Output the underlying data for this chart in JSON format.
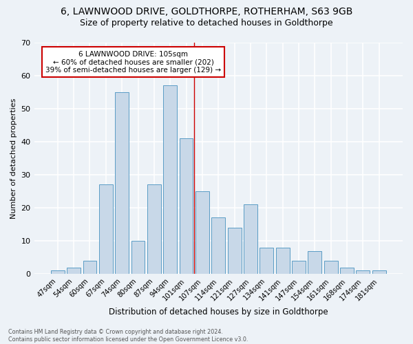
{
  "title": "6, LAWNWOOD DRIVE, GOLDTHORPE, ROTHERHAM, S63 9GB",
  "subtitle": "Size of property relative to detached houses in Goldthorpe",
  "xlabel": "Distribution of detached houses by size in Goldthorpe",
  "ylabel": "Number of detached properties",
  "categories": [
    "47sqm",
    "54sqm",
    "60sqm",
    "67sqm",
    "74sqm",
    "80sqm",
    "87sqm",
    "94sqm",
    "101sqm",
    "107sqm",
    "114sqm",
    "121sqm",
    "127sqm",
    "134sqm",
    "141sqm",
    "147sqm",
    "154sqm",
    "161sqm",
    "168sqm",
    "174sqm",
    "181sqm"
  ],
  "values": [
    1,
    2,
    4,
    27,
    55,
    10,
    27,
    57,
    41,
    25,
    17,
    14,
    21,
    8,
    8,
    4,
    7,
    4,
    2,
    1,
    1
  ],
  "bar_color": "#c8d8e8",
  "bar_edge_color": "#5a9cc5",
  "annotation_title": "6 LAWNWOOD DRIVE: 105sqm",
  "annotation_line1": "← 60% of detached houses are smaller (202)",
  "annotation_line2": "39% of semi-detached houses are larger (129) →",
  "vline_color": "#cc0000",
  "annotation_box_edge": "#cc0000",
  "annotation_box_face": "#ffffff",
  "footer1": "Contains HM Land Registry data © Crown copyright and database right 2024.",
  "footer2": "Contains public sector information licensed under the Open Government Licence v3.0.",
  "ylim": [
    0,
    70
  ],
  "yticks": [
    0,
    10,
    20,
    30,
    40,
    50,
    60,
    70
  ],
  "bg_color": "#edf2f7",
  "plot_bg_color": "#edf2f7",
  "grid_color": "#ffffff",
  "title_fontsize": 10,
  "subtitle_fontsize": 9,
  "vline_index": 8
}
